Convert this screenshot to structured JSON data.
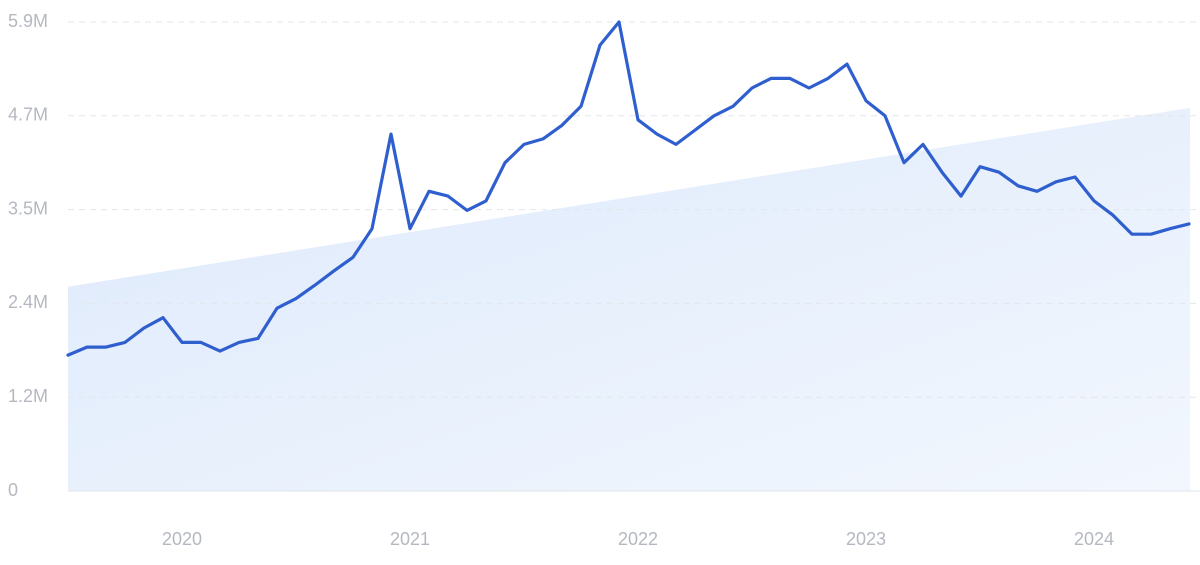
{
  "chart_data": {
    "type": "line",
    "categories": [
      null,
      null,
      null,
      null,
      null,
      null,
      "2020",
      null,
      null,
      null,
      null,
      null,
      null,
      null,
      null,
      null,
      null,
      null,
      "2021",
      null,
      null,
      null,
      null,
      null,
      null,
      null,
      null,
      null,
      null,
      null,
      "2022",
      null,
      null,
      null,
      null,
      null,
      null,
      null,
      null,
      null,
      null,
      null,
      "2023",
      null,
      null,
      null,
      null,
      null,
      null,
      null,
      null,
      null,
      null,
      null,
      "2024",
      null,
      null,
      null,
      null,
      null
    ],
    "values": [
      1710000,
      1810000,
      1810000,
      1870000,
      2050000,
      2180000,
      1870000,
      1870000,
      1760000,
      1870000,
      1920000,
      2300000,
      2420000,
      2590000,
      2770000,
      2940000,
      3300000,
      4490000,
      3300000,
      3770000,
      3710000,
      3530000,
      3650000,
      4130000,
      4360000,
      4430000,
      4600000,
      4840000,
      5610000,
      5900000,
      4670000,
      4490000,
      4360000,
      4540000,
      4720000,
      4840000,
      5070000,
      5190000,
      5190000,
      5070000,
      5190000,
      5370000,
      4910000,
      4720000,
      4130000,
      4360000,
      4010000,
      3710000,
      4080000,
      4010000,
      3840000,
      3770000,
      3890000,
      3950000,
      3650000,
      3470000,
      3230000,
      3230000,
      3300000,
      3360000
    ],
    "color": "#2f5fcf",
    "trend": [
      2570000,
      4820000
    ],
    "trend_color": "#dbe8fb",
    "ylim": [
      0,
      5900000
    ],
    "yticks": [
      0,
      {
        "value": 1180000,
        "label": "1.2M"
      },
      {
        "value": 2360000,
        "label": "2.4M"
      },
      {
        "value": 3540000,
        "label": "3.5M"
      },
      {
        "value": 4720000,
        "label": "4.7M"
      },
      {
        "value": 5900000,
        "label": "5.9M"
      }
    ],
    "grid": true
  }
}
